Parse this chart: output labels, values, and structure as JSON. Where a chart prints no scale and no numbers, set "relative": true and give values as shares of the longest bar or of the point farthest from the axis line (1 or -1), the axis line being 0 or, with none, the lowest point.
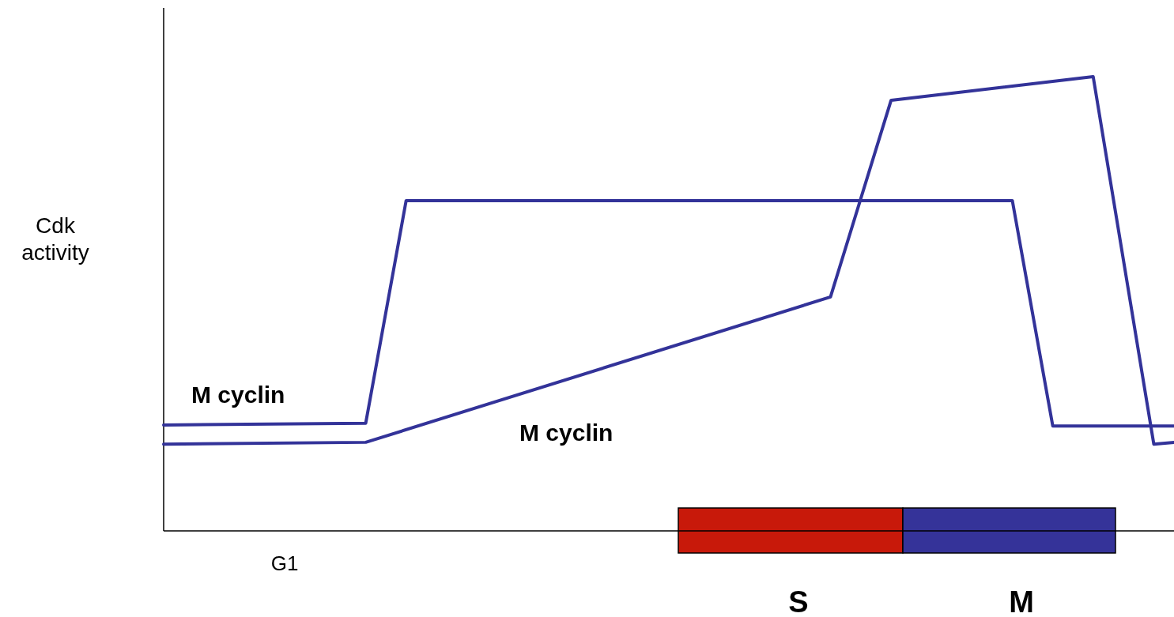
{
  "chart_data": {
    "type": "line",
    "relative": true,
    "ylabel": "Cdk activity",
    "categories": [
      null,
      null,
      null,
      null,
      null,
      null,
      null,
      null,
      null,
      null,
      null,
      null,
      null,
      null,
      null,
      null,
      null,
      null,
      null,
      null,
      null,
      null,
      null,
      null,
      null,
      null,
      null,
      null,
      null,
      null,
      null,
      null,
      null,
      null,
      null,
      null,
      null,
      null,
      null,
      null,
      null,
      null,
      null,
      null,
      null,
      null,
      null,
      null,
      null,
      null,
      null
    ],
    "series": [
      {
        "name": "M cyclin",
        "color": "#333399",
        "values": [
          0.233,
          null,
          null,
          null,
          null,
          null,
          null,
          null,
          null,
          null,
          0.237,
          null,
          0.727,
          null,
          null,
          null,
          null,
          null,
          null,
          null,
          null,
          null,
          null,
          null,
          null,
          null,
          null,
          null,
          null,
          null,
          null,
          null,
          null,
          null,
          null,
          null,
          null,
          null,
          null,
          null,
          null,
          null,
          0.727,
          null,
          0.231,
          null,
          null,
          null,
          null,
          null,
          0.231
        ]
      },
      {
        "name": "M cyclin",
        "color": "#333399",
        "values": [
          0.191,
          null,
          null,
          null,
          null,
          null,
          null,
          null,
          null,
          null,
          0.195,
          null,
          null,
          null,
          null,
          null,
          null,
          null,
          null,
          null,
          null,
          null,
          null,
          null,
          null,
          null,
          null,
          null,
          null,
          null,
          null,
          null,
          null,
          0.515,
          null,
          null,
          0.948,
          null,
          null,
          null,
          null,
          null,
          null,
          null,
          null,
          null,
          1.0,
          null,
          null,
          0.191,
          0.195
        ]
      }
    ],
    "annotations": [
      "G1",
      "S",
      "M"
    ]
  }
}
